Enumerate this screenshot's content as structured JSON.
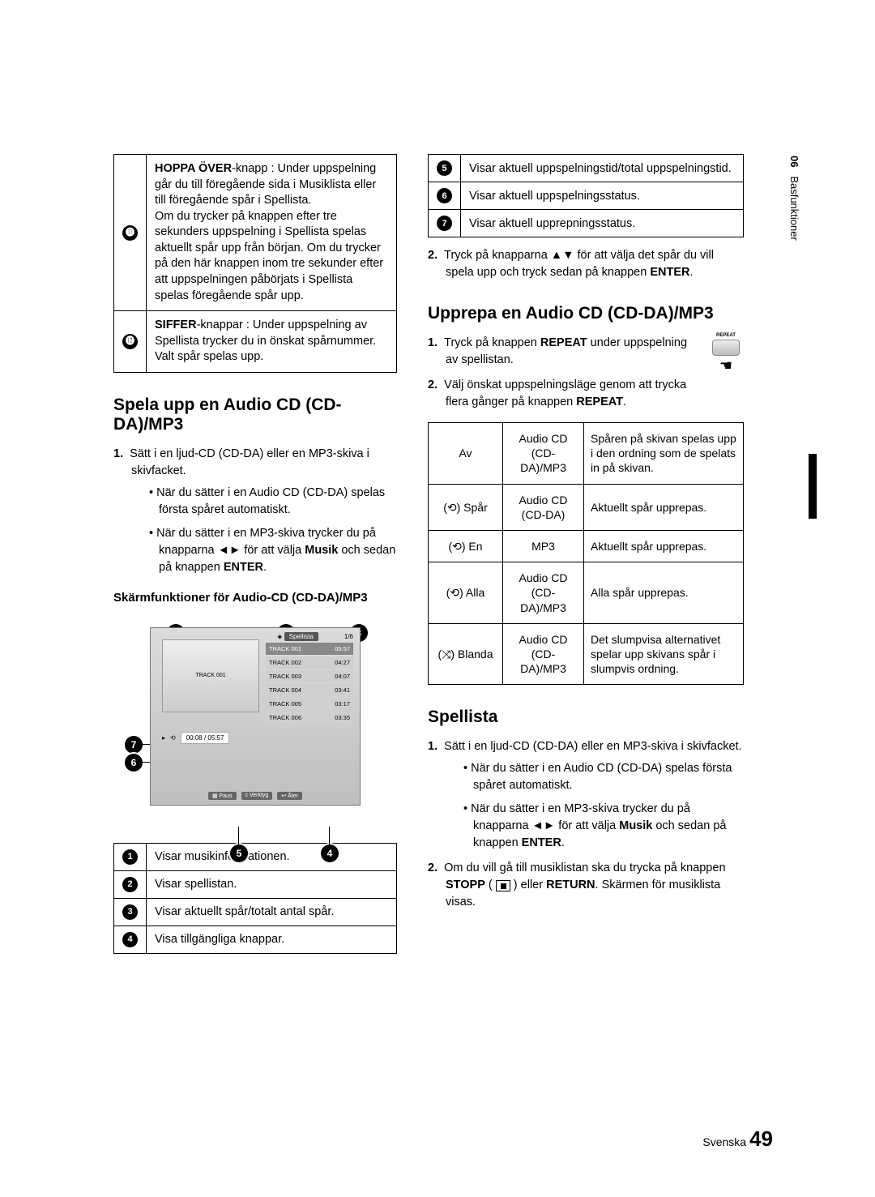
{
  "sidetab": {
    "section": "06",
    "label": "Basfunktioner"
  },
  "footer": {
    "lang": "Svenska",
    "page": "49"
  },
  "topRows": [
    {
      "n": "⓫",
      "html": "<b>HOPPA ÖVER</b>-knapp : Under uppspelning går du till föregående sida i Musiklista eller till föregående spår i Spellista.<br>Om du trycker på knappen efter tre sekunders uppspelning i Spellista spelas aktuellt spår upp från början. Om du trycker på den här knappen inom tre sekunder efter att uppspelningen påbörjats i Spellista spelas föregående spår upp."
    },
    {
      "n": "⓬",
      "html": "<b>SIFFER</b>-knappar : Under uppspelning av Spellista trycker du in önskat spårnummer. Valt spår spelas upp."
    }
  ],
  "h_play": "Spela upp en Audio CD (CD-DA)/MP3",
  "play_list": {
    "l1_pre": "1.",
    "l1": "Sätt i en ljud-CD (CD-DA) eller en MP3-skiva i skivfacket.",
    "b1": "När du sätter i en Audio CD (CD-DA) spelas första spåret automatiskt.",
    "b2_html": "När du sätter i en MP3-skiva trycker du på knapparna ◄► för att välja <b>Musik</b> och sedan på knappen <b>ENTER</b>."
  },
  "h_screenfn": "Skärmfunktioner för Audio-CD (CD-DA)/MP3",
  "screen": {
    "playlist_label": "Spellista",
    "counter": "1/6",
    "disc_label": "TRACK 001",
    "tracks": [
      {
        "t": "TRACK 001",
        "d": "05:57",
        "sel": true
      },
      {
        "t": "TRACK 002",
        "d": "04:27"
      },
      {
        "t": "TRACK 003",
        "d": "04:07"
      },
      {
        "t": "TRACK 004",
        "d": "03:41"
      },
      {
        "t": "TRACK 005",
        "d": "03:17"
      },
      {
        "t": "TRACK 006",
        "d": "03:35"
      }
    ],
    "status_time": "00:08 / 05:57",
    "footer": [
      "▦ Paus",
      "ᴄ Verktyg",
      "↩ Åter"
    ]
  },
  "below": [
    {
      "n": "1",
      "t": "Visar musikinformationen."
    },
    {
      "n": "2",
      "t": "Visar spellistan."
    },
    {
      "n": "3",
      "t": "Visar aktuellt spår/totalt antal spår."
    },
    {
      "n": "4",
      "t": "Visa tillgängliga knappar."
    }
  ],
  "right_top": [
    {
      "n": "5",
      "t": "Visar aktuell uppspelningstid/total uppspelningstid."
    },
    {
      "n": "6",
      "t": "Visar aktuell uppspelningsstatus."
    },
    {
      "n": "7",
      "t": "Visar aktuell upprepningsstatus."
    }
  ],
  "right_step2_html": "Tryck på knapparna ▲▼ för att välja det spår du vill spela upp och tryck sedan på knappen <b>ENTER</b>.",
  "h_repeat": "Upprepa en Audio CD (CD-DA)/MP3",
  "repeat_btn_label": "REPEAT",
  "rep_l1_html": "Tryck på knappen <b>REPEAT</b> under uppspelning av spellistan.",
  "rep_l2_html": "Välj önskat uppspelningsläge genom att trycka flera gånger på knappen <b>REPEAT</b>.",
  "rep_rows": [
    {
      "c1": "Av",
      "c2": "Audio CD (CD-DA)/MP3",
      "c3": "Spåren på skivan spelas upp i den ordning som de spelats in på skivan."
    },
    {
      "c1": "(⟲) Spår",
      "c2": "Audio CD (CD-DA)",
      "c3": "Aktuellt spår upprepas."
    },
    {
      "c1": "(⟲) En",
      "c2": "MP3",
      "c3": "Aktuellt spår upprepas."
    },
    {
      "c1": "(⟲) Alla",
      "c2": "Audio CD (CD-DA)/MP3",
      "c3": "Alla spår upprepas."
    },
    {
      "c1": "(⤨) Blanda",
      "c2": "Audio CD (CD-DA)/MP3",
      "c3": "Det slumpvisa alternativet spelar upp skivans spår i slumpvis ordning."
    }
  ],
  "h_spellista": "Spellista",
  "sp_l1": "Sätt i en ljud-CD (CD-DA) eller en MP3-skiva i skivfacket.",
  "sp_b1": "När du sätter i en Audio CD (CD-DA) spelas första spåret automatiskt.",
  "sp_b2_html": "När du sätter i en MP3-skiva trycker du på knapparna ◄► för att välja <b>Musik</b> och sedan på knappen <b>ENTER</b>.",
  "sp_l2_html": "Om du vill gå till musiklistan ska du trycka på knappen <b>STOPP</b> ( <span class='stop-icon' data-name='stop-icon' data-interactable='false'></span> ) eller <b>RETURN</b>. Skärmen för musiklista visas."
}
